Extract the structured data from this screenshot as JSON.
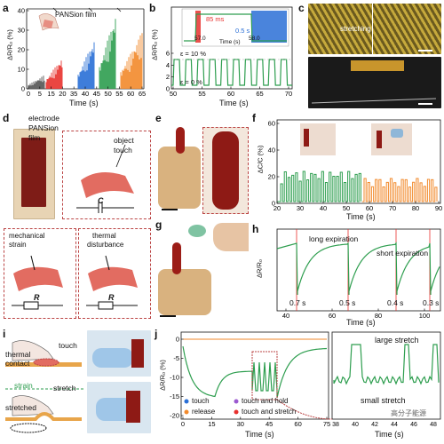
{
  "panels": {
    "a": {
      "label": "a",
      "inset": "PANSion film",
      "ylabel": "ΔR/R₀ (%)",
      "xlabel": "Time (s)",
      "xticks": [
        "0",
        "5",
        "15",
        "20",
        "35",
        "40",
        "45",
        "50",
        "55",
        "60",
        "65"
      ],
      "yticks": [
        "0",
        "10",
        "20",
        "30",
        "40"
      ]
    },
    "b": {
      "label": "b",
      "ylabel": "ΔR/R₀ (%)",
      "xlabel": "Time (s)",
      "xticks": [
        "50",
        "55",
        "60",
        "65",
        "70"
      ],
      "yticks": [
        "0",
        "2",
        "4",
        "6"
      ],
      "inset_ticks": [
        "57.0",
        "58.0"
      ],
      "inset_xlabel": "Time (s)",
      "ann_85": "85 ms",
      "ann_05": "0.5 s",
      "eps10": "ε = 10 %",
      "eps0": "ε = 0 %"
    },
    "c": {
      "label": "c",
      "stretch": "stretching"
    },
    "d": {
      "label": "d",
      "electrode": "electrode",
      "pansion": "PANSion",
      "film": "film",
      "object": "object",
      "touch": "touch",
      "C": "C",
      "mech": "mechanical",
      "strain": "strain",
      "thermal": "thermal",
      "disturbance": "disturbance",
      "R1": "R",
      "R2": "R"
    },
    "e": {
      "label": "e"
    },
    "f": {
      "label": "f",
      "ylabel": "ΔC/C (%)",
      "xlabel": "Time (s)",
      "xticks": [
        "20",
        "30",
        "40",
        "50",
        "60",
        "70",
        "80",
        "90"
      ],
      "yticks": [
        "0",
        "20",
        "40",
        "60"
      ]
    },
    "g": {
      "label": "g"
    },
    "h": {
      "label": "h",
      "ylabel": "ΔR/R₀",
      "xlabel": "Time (s)",
      "xticks": [
        "40",
        "60",
        "80",
        "100"
      ],
      "long": "long expiration",
      "short": "short expiration",
      "t1": "0.7 s",
      "t2": "0.5 s",
      "t3": "0.4 s",
      "t4": "0.3 s"
    },
    "i": {
      "label": "i",
      "touch": "touch",
      "thermal": "thermal",
      "contact": "contact",
      "strain": "strain",
      "stretch": "stretch",
      "stretched": "stretched"
    },
    "j": {
      "label": "j",
      "ylabel": "ΔR/R₀ (%)",
      "xlabel": "Time (s)",
      "xticks1": [
        "0",
        "15",
        "30",
        "45",
        "60",
        "75"
      ],
      "xticks2": [
        "38",
        "40",
        "42",
        "44",
        "46",
        "48"
      ],
      "yticks": [
        "0",
        "-5",
        "-10",
        "-15",
        "-20"
      ],
      "leg_touch": "touch",
      "leg_release": "release",
      "leg_hold": "touch and hold",
      "leg_tstretch": "touch and stretch",
      "large": "large stretch",
      "small": "small stretch",
      "watermark": "高分子能源"
    }
  },
  "chart_data": [
    {
      "type": "line",
      "panel": "a",
      "xlabel": "Time (s)",
      "ylabel": "ΔR/R₀ (%)",
      "ylim": [
        0,
        40
      ],
      "series": [
        {
          "name": "",
          "color": "#555555",
          "x": [
            0,
            5
          ],
          "peak": 7
        },
        {
          "name": "",
          "color": "#e8312e",
          "x": [
            14,
            20
          ],
          "peak": 16
        },
        {
          "name": "",
          "color": "#2a6fd6",
          "x": [
            34,
            40
          ],
          "peak": 25
        },
        {
          "name": "",
          "color": "#2e9e4f",
          "x": [
            49,
            55
          ],
          "peak": 38
        },
        {
          "name": "",
          "color": "#f28a2c",
          "x": [
            59,
            65
          ],
          "peak": 29
        }
      ]
    },
    {
      "type": "line",
      "panel": "b",
      "xlabel": "Time (s)",
      "ylabel": "ΔR/R₀ (%)",
      "xlim": [
        50,
        70
      ],
      "ylim": [
        0,
        7
      ],
      "series": [
        {
          "name": "",
          "color": "#2e9e4f",
          "period_s": 2,
          "high": 5.5,
          "low": 0
        }
      ]
    },
    {
      "type": "line",
      "panel": "f",
      "xlabel": "Time (s)",
      "ylabel": "ΔC/C (%)",
      "xlim": [
        20,
        90
      ],
      "ylim": [
        0,
        60
      ],
      "series": [
        {
          "name": "",
          "color": "#2e9e4f",
          "x": [
            20,
            50
          ]
        },
        {
          "name": "",
          "color": "#f28a2c",
          "x": [
            50,
            90
          ]
        }
      ]
    },
    {
      "type": "line",
      "panel": "h",
      "xlabel": "Time (s)",
      "ylabel": "ΔR/R₀",
      "xlim": [
        35,
        105
      ],
      "series": [
        {
          "name": "",
          "color": "#2e9e4f",
          "events": [
            40,
            60,
            80,
            95
          ]
        }
      ]
    },
    {
      "type": "line",
      "panel": "j",
      "xlabel": "Time (s)",
      "ylabel": "ΔR/R₀ (%)",
      "xlim": [
        0,
        75
      ],
      "ylim": [
        -20,
        2
      ],
      "series": [
        {
          "name": "",
          "color": "#2e9e4f"
        }
      ]
    }
  ]
}
